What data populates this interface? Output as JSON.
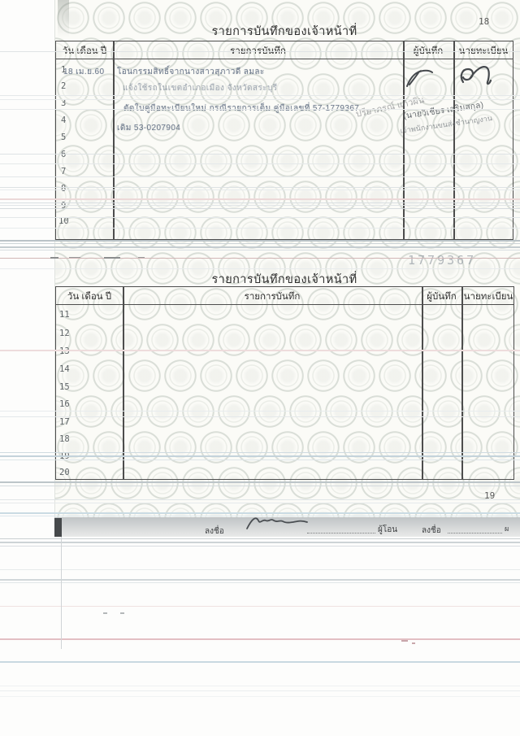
{
  "colors": {
    "table_border": "#4d4d4d",
    "watermark_seal": "#96a396",
    "typewriter_ink": "#606e82",
    "handwriting_ink": "#45494d"
  },
  "page1": {
    "page_number": "18",
    "title": "รายการบันทึกของเจ้าหน้าที่",
    "columns": [
      "วัน เดือน ปี",
      "รายการบันทึก",
      "ผู้บันทึก",
      "นายทะเบียน"
    ],
    "row_numbers": [
      "1",
      "2",
      "3",
      "4",
      "5",
      "6",
      "7",
      "8",
      "9",
      "10"
    ],
    "entries": [
      {
        "row": "1",
        "date": "18 เม.ย.60",
        "text": "โอนกรรมสิทธิ์จากนางสาวสุภาวดี ลมละ"
      },
      {
        "row": "2",
        "date": "",
        "text": "แจ้งใช้รถในเขตอำเภอเมือง จังหวัดสระบุรี"
      },
      {
        "row": "3",
        "date": "",
        "text": "ตัดใบคู่มือทะเบียนใหม่ กรณีรายการเต็ม คู่มือเลขที่ 57-1779367"
      },
      {
        "row": "4",
        "date": "",
        "text": "เดิม 53-0207904"
      }
    ],
    "annotations": {
      "recorder_note": "ปรียาภรณ์ แก้วผิน",
      "registrar_stamp_name": "(นายวิเชียร เสริมสกุล)",
      "registrar_stamp_title": "เจ้าพนักงานขนส่งชำนาญงาน"
    }
  },
  "book_number_partial": "1779367",
  "page2": {
    "title": "รายการบันทึกของเจ้าหน้าที่",
    "columns": [
      "วัน เดือน ปี",
      "รายการบันทึก",
      "ผู้บันทึก",
      "นายทะเบียน"
    ],
    "row_numbers": [
      "11",
      "12",
      "13",
      "14",
      "15",
      "16",
      "17",
      "18",
      "19",
      "20"
    ]
  },
  "footer_strip": {
    "next_page_number": "19",
    "sign_label_left": "ลงชื่อ",
    "transferor_label": "ผู้โอน",
    "sign_label_right": "ลงชื่อ",
    "partial_char": "ผ"
  }
}
